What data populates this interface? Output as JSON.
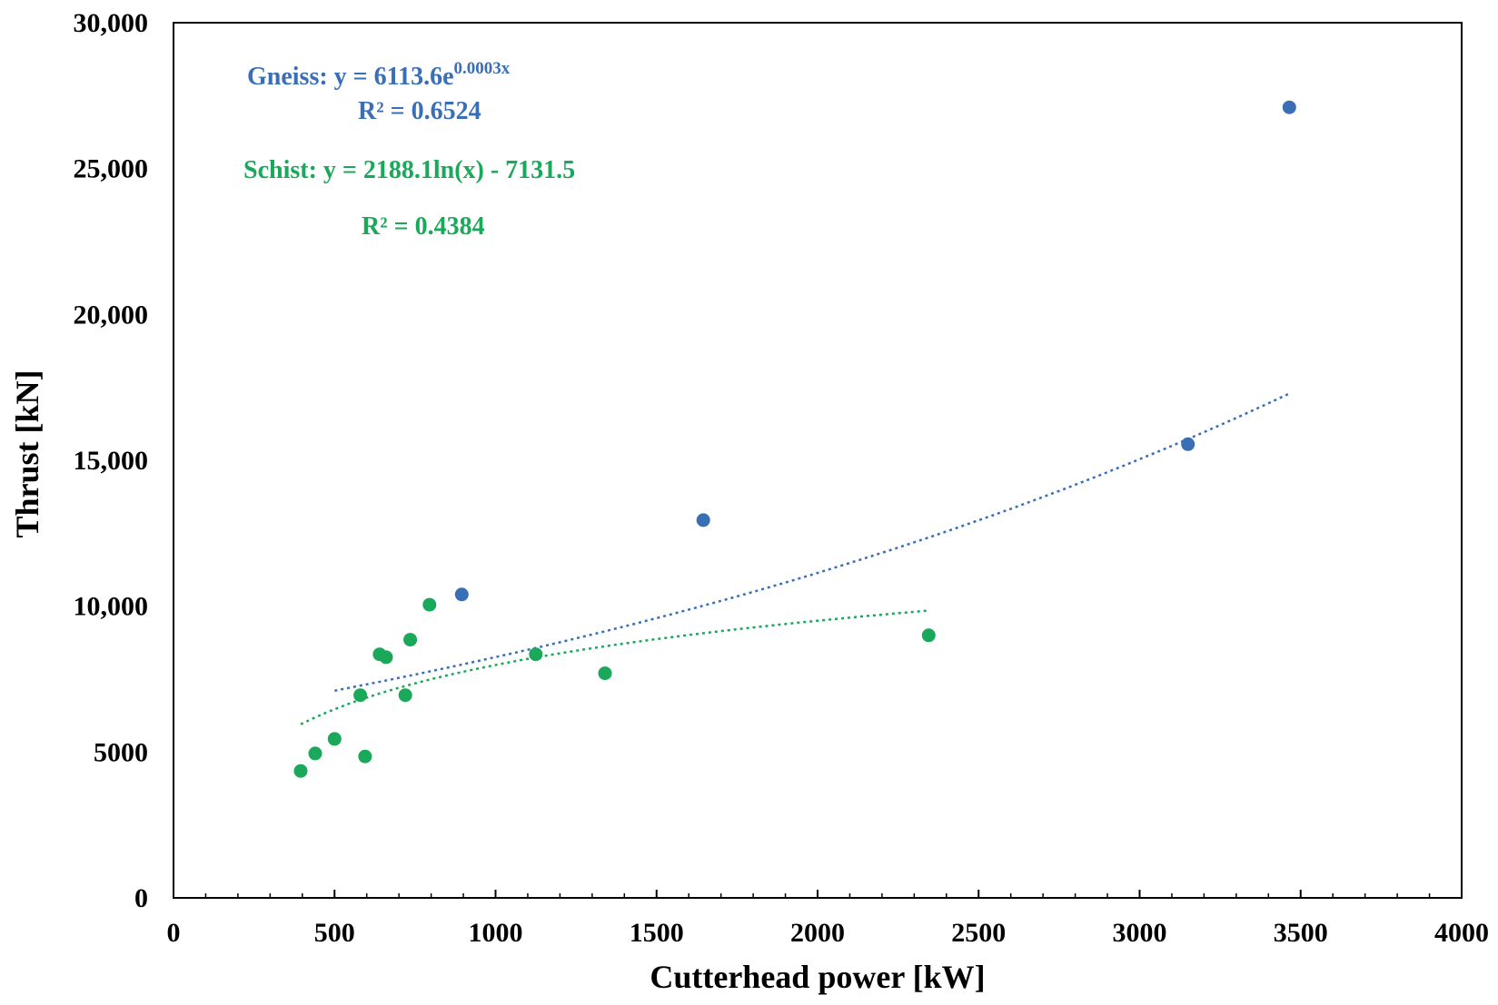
{
  "chart_data": {
    "type": "scatter",
    "title": "",
    "xlabel": "Cutterhead power [kW]",
    "ylabel": "Thrust [kN]",
    "xlim": [
      0,
      4000
    ],
    "ylim": [
      0,
      30000
    ],
    "x_ticks": [
      0,
      500,
      1000,
      1500,
      2000,
      2500,
      3000,
      3500,
      4000
    ],
    "x_tick_labels": [
      "0",
      "500",
      "1000",
      "1500",
      "2000",
      "2500",
      "3000",
      "3500",
      "4000"
    ],
    "y_ticks": [
      0,
      5000,
      10000,
      15000,
      20000,
      25000,
      30000
    ],
    "y_tick_labels": [
      "0",
      "5000",
      "10,000",
      "15,000",
      "20,000",
      "25,000",
      "30,000"
    ],
    "grid": false,
    "series": [
      {
        "name": "Gneiss",
        "color": "#3a6fb5",
        "points": [
          [
            895,
            10400
          ],
          [
            1645,
            12950
          ],
          [
            3150,
            15550
          ],
          [
            3465,
            27100
          ]
        ],
        "trendline": {
          "kind": "exponential",
          "a": 6113.6,
          "b": 0.0003,
          "x_range": [
            500,
            3470
          ]
        },
        "equation": "Gneiss: y = 6113.6e",
        "equation_exp": "0.0003x",
        "r2": "R² = 0.6524"
      },
      {
        "name": "Schist",
        "color": "#1aa85a",
        "points": [
          [
            395,
            4350
          ],
          [
            440,
            4950
          ],
          [
            500,
            5450
          ],
          [
            580,
            6950
          ],
          [
            595,
            4850
          ],
          [
            640,
            8350
          ],
          [
            660,
            8250
          ],
          [
            720,
            6950
          ],
          [
            735,
            8850
          ],
          [
            795,
            10050
          ],
          [
            1125,
            8350
          ],
          [
            1340,
            7700
          ],
          [
            2345,
            9000
          ]
        ],
        "trendline": {
          "kind": "logarithmic",
          "a": 2188.1,
          "b": -7131.5,
          "x_range": [
            395,
            2345
          ]
        },
        "equation": "Schist: y = 2188.1ln(x) - 7131.5",
        "r2": "R² = 0.4384"
      }
    ]
  }
}
